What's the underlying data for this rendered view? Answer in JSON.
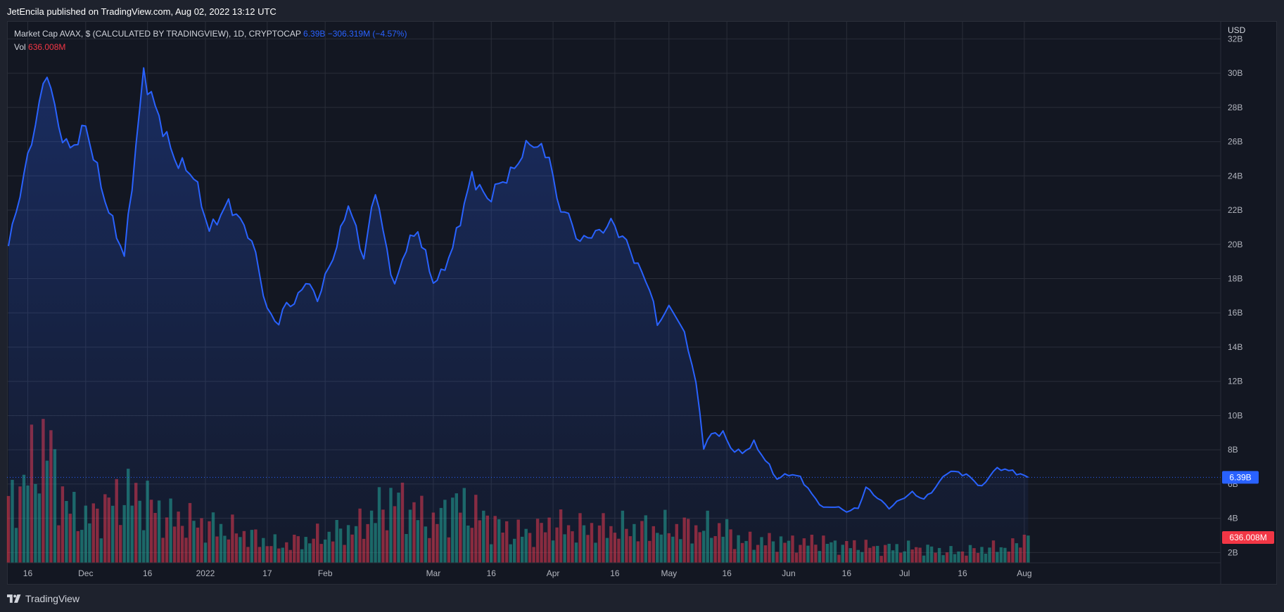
{
  "header": {
    "publish_line": "JetEncila published on TradingView.com, Aug 02, 2022 13:12 UTC"
  },
  "legend": {
    "title": "Market Cap AVAX, $ (CALCULATED BY TRADINGVIEW), 1D, CRYPTOCAP",
    "last_value": "6.39B",
    "change": "−306.319M (−4.57%)",
    "vol_label": "Vol",
    "vol_value": "636.008M"
  },
  "currency": "USD",
  "footer": {
    "brand": "TradingView",
    "logo_icon": "tradingview-logo-icon"
  },
  "colors": {
    "line": "#2962ff",
    "area_top": "#2962ff",
    "up_volume": "#22ab94",
    "down_volume": "#f23645",
    "badge_price": "#2962ff",
    "badge_vol": "#f23645"
  },
  "chart_data": {
    "type": "area",
    "title": "Market Cap AVAX, $ (CALCULATED BY TRADINGVIEW), 1D, CRYPTOCAP",
    "ylabel": "USD",
    "ylim": [
      1.4,
      33
    ],
    "yticks": [
      "32B",
      "30B",
      "28B",
      "26B",
      "24B",
      "22B",
      "20B",
      "18B",
      "16B",
      "14B",
      "12B",
      "10B",
      "8B",
      "6B",
      "4B",
      "2B"
    ],
    "ytick_values": [
      32,
      30,
      28,
      26,
      24,
      22,
      20,
      18,
      16,
      14,
      12,
      10,
      8,
      6,
      4,
      2
    ],
    "xticks": [
      "16",
      "Dec",
      "16",
      "2022",
      "17",
      "Feb",
      "Mar",
      "16",
      "Apr",
      "16",
      "May",
      "16",
      "Jun",
      "16",
      "Jul",
      "16",
      "Aug"
    ],
    "xtick_days": [
      5,
      20,
      36,
      51,
      67,
      82,
      110,
      125,
      141,
      157,
      171,
      186,
      202,
      217,
      232,
      247,
      263
    ],
    "grid": true,
    "series": [
      {
        "unit": "B USD",
        "x_day_keys": [
          0,
          10,
          13,
          16,
          20,
          25,
          30,
          35,
          38,
          43,
          48,
          52,
          57,
          62,
          64,
          67,
          70,
          72,
          74,
          77,
          80,
          85,
          88,
          92,
          95,
          97,
          100,
          103,
          106,
          110,
          112,
          115,
          120,
          124,
          127,
          130,
          135,
          140,
          142,
          145,
          148,
          150,
          153,
          156,
          160,
          163,
          166,
          168,
          170,
          172,
          174,
          176,
          178,
          180,
          182,
          185,
          187,
          190,
          193,
          196,
          199,
          202,
          205,
          208,
          211,
          214,
          217,
          220,
          222,
          225,
          228,
          231,
          234,
          237,
          240,
          243,
          246,
          249,
          252,
          255,
          258,
          260,
          262,
          264
        ],
        "x": [
          "2021-11-11",
          "2021-11-21",
          "2021-11-24",
          "2021-11-27",
          "2021-12-01",
          "2021-12-06",
          "2021-12-11",
          "2021-12-16",
          "2021-12-19",
          "2021-12-24",
          "2021-12-29",
          "2022-01-02",
          "2022-01-07",
          "2022-01-12",
          "2022-01-14",
          "2022-01-17",
          "2022-01-20",
          "2022-01-22",
          "2022-01-24",
          "2022-01-27",
          "2022-01-30",
          "2022-02-04",
          "2022-02-07",
          "2022-02-11",
          "2022-02-14",
          "2022-02-16",
          "2022-02-19",
          "2022-02-22",
          "2022-02-25",
          "2022-03-01",
          "2022-03-03",
          "2022-03-06",
          "2022-03-11",
          "2022-03-15",
          "2022-03-18",
          "2022-03-21",
          "2022-03-26",
          "2022-03-31",
          "2022-04-02",
          "2022-04-05",
          "2022-04-08",
          "2022-04-10",
          "2022-04-13",
          "2022-04-16",
          "2022-04-20",
          "2022-04-23",
          "2022-04-26",
          "2022-04-28",
          "2022-04-30",
          "2022-05-02",
          "2022-05-04",
          "2022-05-06",
          "2022-05-08",
          "2022-05-10",
          "2022-05-12",
          "2022-05-15",
          "2022-05-17",
          "2022-05-20",
          "2022-05-23",
          "2022-05-26",
          "2022-05-29",
          "2022-06-01",
          "2022-06-04",
          "2022-06-07",
          "2022-06-10",
          "2022-06-13",
          "2022-06-16",
          "2022-06-19",
          "2022-06-21",
          "2022-06-24",
          "2022-06-27",
          "2022-06-30",
          "2022-07-03",
          "2022-07-06",
          "2022-07-09",
          "2022-07-12",
          "2022-07-15",
          "2022-07-18",
          "2022-07-21",
          "2022-07-24",
          "2022-07-27",
          "2022-07-29",
          "2022-07-31",
          "2022-08-02"
        ],
        "values": [
          19.9,
          30.2,
          26.8,
          25.5,
          26.9,
          22.6,
          19.3,
          30.0,
          28.0,
          25.0,
          24.0,
          20.8,
          22.4,
          20.7,
          19.4,
          16.1,
          15.4,
          16.6,
          16.5,
          17.9,
          16.8,
          19.9,
          22.4,
          19.2,
          23.3,
          20.7,
          17.5,
          19.9,
          20.8,
          17.8,
          18.2,
          19.8,
          24.0,
          22.6,
          23.5,
          24.1,
          26.0,
          25.2,
          22.5,
          21.6,
          20.1,
          20.5,
          20.7,
          21.3,
          20.1,
          18.7,
          17.5,
          15.3,
          16.1,
          16.2,
          15.3,
          14.0,
          11.9,
          8.2,
          8.9,
          9.0,
          8.1,
          7.8,
          8.4,
          7.4,
          6.3,
          6.6,
          6.4,
          5.4,
          4.6,
          4.7,
          4.4,
          4.6,
          5.8,
          5.2,
          4.6,
          5.1,
          5.5,
          5.1,
          5.8,
          6.7,
          6.7,
          6.4,
          5.8,
          6.8,
          6.9,
          6.7,
          6.6,
          6.39
        ]
      },
      {
        "name": "Vol",
        "unit": "B USD",
        "x_day_keys": [
          0,
          10,
          15,
          20,
          30,
          35,
          40,
          50,
          60,
          70,
          80,
          90,
          100,
          107,
          110,
          115,
          120,
          130,
          135,
          141,
          145,
          150,
          155,
          160,
          165,
          170,
          175,
          180,
          185,
          190,
          195,
          200,
          205,
          210,
          215,
          220,
          225,
          230,
          235,
          240,
          245,
          250,
          255,
          260,
          264
        ],
        "values": [
          1.3,
          2.8,
          1.3,
          1.0,
          1.6,
          1.5,
          1.1,
          0.9,
          0.7,
          0.4,
          0.6,
          0.8,
          1.5,
          1.1,
          0.9,
          1.4,
          1.2,
          0.7,
          0.7,
          0.9,
          0.8,
          0.8,
          0.8,
          0.8,
          0.8,
          0.8,
          0.8,
          0.8,
          0.8,
          0.5,
          0.5,
          0.5,
          0.45,
          0.5,
          0.4,
          0.4,
          0.35,
          0.35,
          0.35,
          0.3,
          0.25,
          0.3,
          0.35,
          0.38,
          0.636
        ]
      }
    ]
  }
}
